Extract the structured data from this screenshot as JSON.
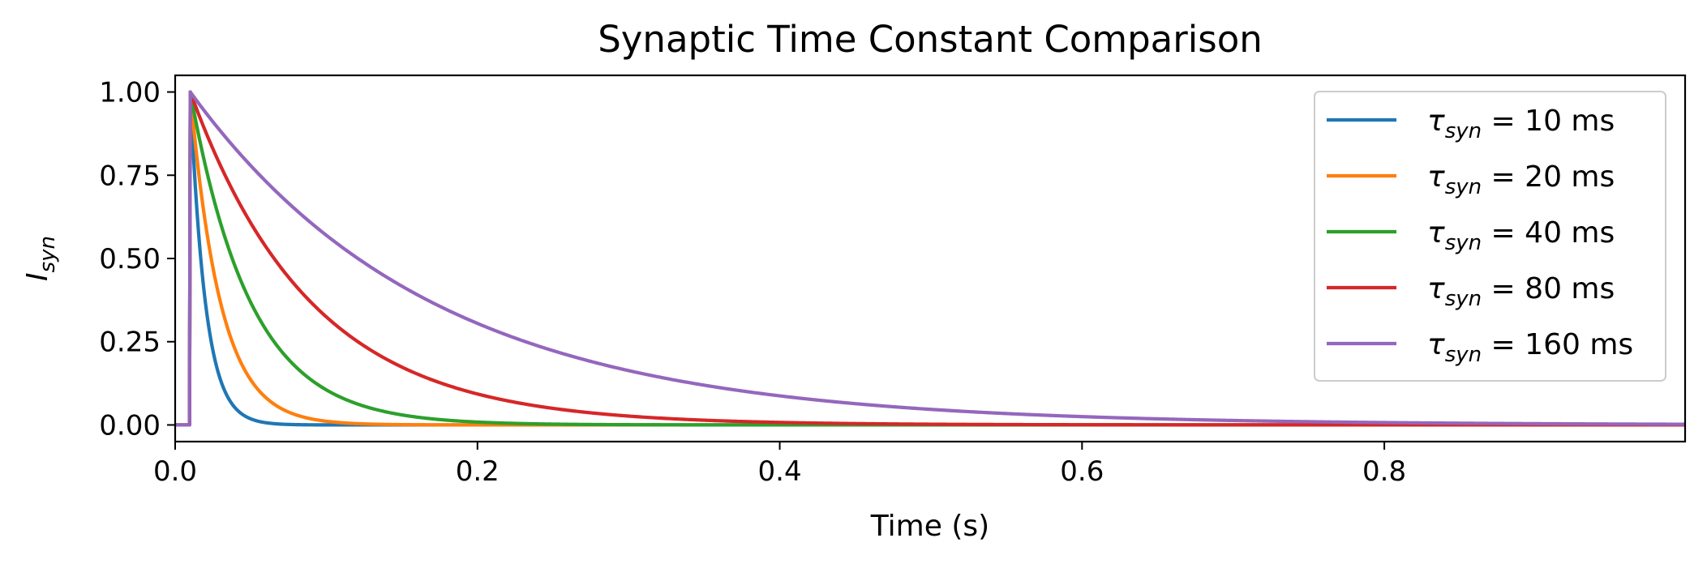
{
  "chart_data": {
    "type": "line",
    "title": "Synaptic Time Constant Comparison",
    "xlabel": "Time (s)",
    "ylabel": {
      "base": "I",
      "sub": "syn"
    },
    "xlim": [
      0.0,
      0.999
    ],
    "ylim": [
      -0.05,
      1.05
    ],
    "xticks": [
      "0.0",
      "0.2",
      "0.4",
      "0.6",
      "0.8"
    ],
    "xtick_values": [
      0.0,
      0.2,
      0.4,
      0.6,
      0.8
    ],
    "yticks": [
      "0.00",
      "0.25",
      "0.50",
      "0.75",
      "1.00"
    ],
    "ytick_values": [
      0.0,
      0.25,
      0.5,
      0.75,
      1.0
    ],
    "grid": false,
    "legend_position": "top-right",
    "onset_time": 0.01,
    "series": [
      {
        "name": "τ_syn = 10 ms",
        "legend_prefix": "τ",
        "legend_sub": "syn",
        "legend_suffix": " = 10 ms",
        "tau": 0.01,
        "color": "#1f77b4"
      },
      {
        "name": "τ_syn = 20 ms",
        "legend_prefix": "τ",
        "legend_sub": "syn",
        "legend_suffix": " = 20 ms",
        "tau": 0.02,
        "color": "#ff7f0e"
      },
      {
        "name": "τ_syn = 40 ms",
        "legend_prefix": "τ",
        "legend_sub": "syn",
        "legend_suffix": " = 40 ms",
        "tau": 0.04,
        "color": "#2ca02c"
      },
      {
        "name": "τ_syn = 80 ms",
        "legend_prefix": "τ",
        "legend_sub": "syn",
        "legend_suffix": " = 80 ms",
        "tau": 0.08,
        "color": "#d62728"
      },
      {
        "name": "τ_syn = 160 ms",
        "legend_prefix": "τ",
        "legend_sub": "syn",
        "legend_suffix": " = 160 ms",
        "tau": 0.16,
        "color": "#9467bd"
      }
    ]
  }
}
